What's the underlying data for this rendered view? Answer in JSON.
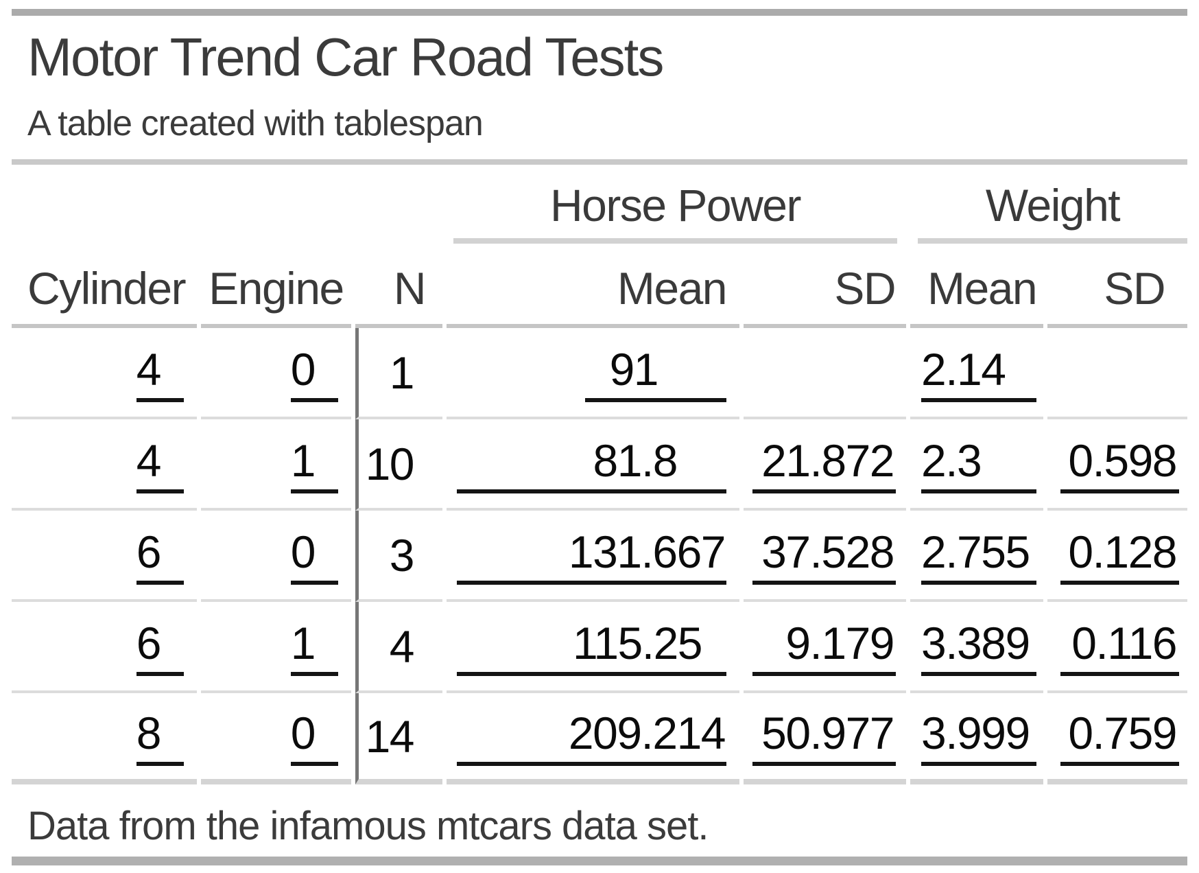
{
  "chart_data": {
    "type": "table",
    "title": "Motor Trend Car Road Tests",
    "subtitle": "A table created with tablespan",
    "spanners": [
      {
        "label": "Horse Power",
        "columns": [
          "Mean",
          "SD"
        ]
      },
      {
        "label": "Weight",
        "columns": [
          "Mean",
          "SD"
        ]
      }
    ],
    "columns": [
      "Cylinder",
      "Engine",
      "N",
      "Mean",
      "SD",
      "Mean",
      "SD"
    ],
    "rows": [
      [
        "4",
        "0",
        "1",
        "91",
        "",
        "2.14",
        ""
      ],
      [
        "4",
        "1",
        "10",
        "81.8",
        "21.872",
        "2.3",
        "0.598"
      ],
      [
        "6",
        "0",
        "3",
        "131.667",
        "37.528",
        "2.755",
        "0.128"
      ],
      [
        "6",
        "1",
        "4",
        "115.25",
        "9.179",
        "3.389",
        "0.116"
      ],
      [
        "8",
        "0",
        "14",
        "209.214",
        "50.977",
        "3.999",
        "0.759"
      ]
    ],
    "footnote": "Data from the infamous mtcars data set.",
    "layout_hints": {
      "grid": "horizontal rules only, vertical rule after Engine column",
      "legend_position": "none"
    }
  },
  "colors": {
    "background": "#ffffff",
    "top_bar": "#ababab",
    "bottom_bar": "#b0b0b0",
    "section_rule": "#c9c9c9",
    "spanner_rule": "#d2d2d2",
    "header_rule": "#c5c5c5",
    "row_rule": "#dcdcdc",
    "vertical_rule": "#767676",
    "value_underline": "#141414",
    "text_primary": "#3b3b3b",
    "text_data": "#0b0b0b"
  }
}
